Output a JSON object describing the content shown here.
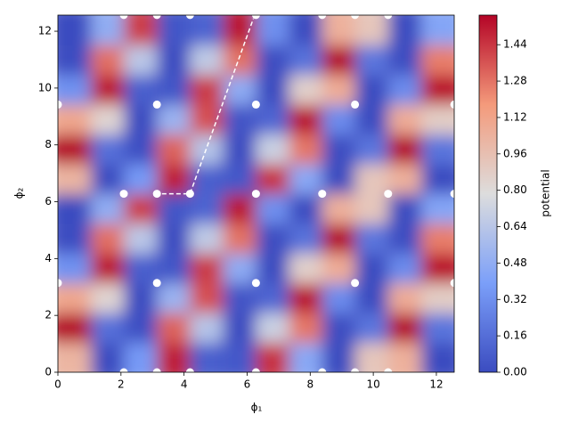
{
  "chart_data": {
    "type": "heatmap",
    "xlabel": "ϕ₁",
    "ylabel": "ϕ₂",
    "colorbar_label": "potential",
    "colormap": "coolwarm",
    "xlim": [
      0,
      12.566
    ],
    "ylim": [
      0,
      12.566
    ],
    "xticks": [
      0,
      2,
      4,
      6,
      8,
      10,
      12
    ],
    "yticks": [
      0,
      2,
      4,
      6,
      8,
      10,
      12
    ],
    "clim": [
      0,
      1.57
    ],
    "cticks": [
      {
        "value": 0,
        "label": "0.00"
      },
      0.16,
      0.32,
      0.48,
      0.64,
      {
        "value": 0.8,
        "label": "0.80"
      },
      0.96,
      1.12,
      1.28,
      1.44
    ],
    "z": [
      [
        1.02,
        0.0,
        0.37,
        1.5,
        0.09,
        0.06,
        1.45,
        0.45,
        0.0,
        0.92,
        1.05,
        0.0
      ],
      [
        1.57,
        0.17,
        0.02,
        1.32,
        0.63,
        0.0,
        0.71,
        1.27,
        0.01,
        0.2,
        1.57,
        0.19
      ],
      [
        1.1,
        0.83,
        0.0,
        0.52,
        1.37,
        0.04,
        0.12,
        1.54,
        0.3,
        0.0,
        1.07,
        0.88
      ],
      [
        0.33,
        1.53,
        0.09,
        0.05,
        1.43,
        0.47,
        0.0,
        0.86,
        1.07,
        0.0,
        0.3,
        1.54
      ],
      [
        0.01,
        1.29,
        0.65,
        0.0,
        0.67,
        1.28,
        0.01,
        0.18,
        1.57,
        0.2,
        0.01,
        1.25
      ],
      [
        0.0,
        0.48,
        1.42,
        0.05,
        0.11,
        1.53,
        0.32,
        0.0,
        1.05,
        0.92,
        0.0,
        0.43
      ],
      [
        1.02,
        0.0,
        0.37,
        1.5,
        0.09,
        0.06,
        1.45,
        0.45,
        0.0,
        0.92,
        1.05,
        0.0
      ],
      [
        1.57,
        0.17,
        0.02,
        1.32,
        0.63,
        0.0,
        0.71,
        1.27,
        0.01,
        0.2,
        1.57,
        0.19
      ],
      [
        1.1,
        0.83,
        0.0,
        0.52,
        1.37,
        0.04,
        0.12,
        1.54,
        0.3,
        0.0,
        1.07,
        0.88
      ],
      [
        0.33,
        1.53,
        0.09,
        0.05,
        1.43,
        0.47,
        0.0,
        0.86,
        1.07,
        0.0,
        0.3,
        1.54
      ],
      [
        0.01,
        1.29,
        0.65,
        0.0,
        0.67,
        1.28,
        0.01,
        0.18,
        1.57,
        0.2,
        0.01,
        1.25
      ],
      [
        0.0,
        0.48,
        1.42,
        0.05,
        0.11,
        1.53,
        0.32,
        0.0,
        1.05,
        0.92,
        0.0,
        0.43
      ]
    ],
    "points": {
      "color": "#ffffff",
      "x": [
        2.09,
        3.14,
        4.19,
        6.28,
        8.38,
        10.47,
        12.57,
        0,
        3.14,
        6.28,
        9.42,
        12.57,
        0,
        3.14,
        6.28,
        9.42,
        12.57,
        2.09,
        3.14,
        4.19,
        6.28,
        8.38,
        9.42,
        10.47,
        2.09,
        3.14,
        4.19,
        6.28,
        8.38,
        9.42,
        10.47
      ],
      "y": [
        6.28,
        6.28,
        6.28,
        6.28,
        6.28,
        6.28,
        6.28,
        9.42,
        9.42,
        9.42,
        9.42,
        9.42,
        3.14,
        3.14,
        3.14,
        3.14,
        3.14,
        12.57,
        12.57,
        12.57,
        12.57,
        12.57,
        12.57,
        12.57,
        0,
        0,
        0,
        0,
        0,
        0,
        0
      ]
    },
    "path": {
      "color": "#ffffff",
      "x": [
        3.3,
        4.19,
        6.2
      ],
      "y": [
        6.28,
        6.28,
        12.45
      ]
    }
  }
}
